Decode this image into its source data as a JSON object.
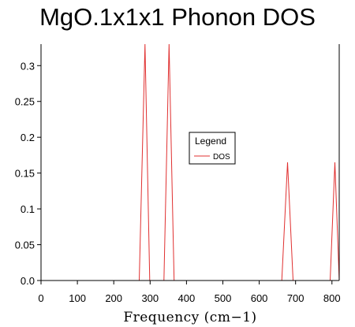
{
  "chart_data": {
    "type": "line",
    "title": "MgO.1x1x1 Phonon DOS",
    "xlabel": "Frequency (cm−1)",
    "ylabel": "",
    "xlim": [
      0,
      820
    ],
    "ylim": [
      0,
      0.33
    ],
    "x_ticks": [
      0,
      100,
      200,
      300,
      400,
      500,
      600,
      700,
      800
    ],
    "y_ticks": [
      0.0,
      0.05,
      0.1,
      0.15,
      0.2,
      0.25,
      0.3
    ],
    "y_tick_labels": [
      "0.0",
      "0.05",
      "0.1",
      "0.15",
      "0.2",
      "0.25",
      "0.3"
    ],
    "legend": {
      "title": "Legend",
      "placement": "center-right"
    },
    "series": [
      {
        "name": "DOS",
        "color": "#e03030",
        "x": [
          0,
          270,
          286,
          299,
          338,
          352,
          366,
          662,
          678,
          693,
          795,
          808,
          820
        ],
        "y": [
          0,
          0,
          0.33,
          0,
          0,
          0.33,
          0,
          0,
          0.165,
          0,
          0,
          0.165,
          0
        ]
      }
    ]
  }
}
